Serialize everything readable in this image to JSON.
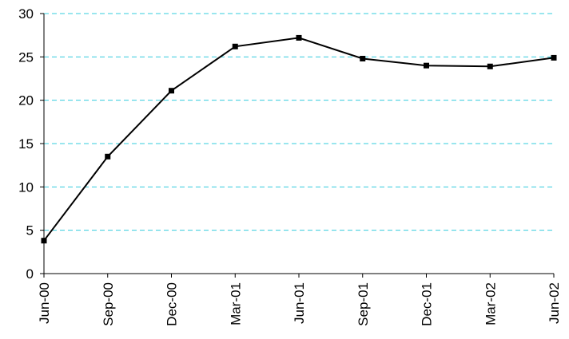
{
  "chart_data": {
    "type": "line",
    "title": "",
    "xlabel": "",
    "ylabel": "",
    "categories": [
      "Jun-00",
      "Sep-00",
      "Dec-00",
      "Mar-01",
      "Jun-01",
      "Sep-01",
      "Dec-01",
      "Mar-02",
      "Jun-02"
    ],
    "series": [
      {
        "values": [
          3.8,
          13.5,
          21.1,
          26.2,
          27.2,
          24.8,
          24.0,
          23.9,
          24.9
        ]
      }
    ],
    "ylim": [
      0,
      30
    ],
    "yticks": [
      0,
      5,
      10,
      15,
      20,
      25,
      30
    ],
    "grid": true,
    "legend": "none",
    "colors": {
      "grid": "#33ccdd",
      "line": "#000000",
      "axis": "#000000"
    }
  }
}
